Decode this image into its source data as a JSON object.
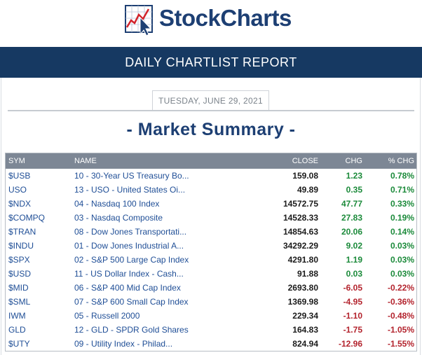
{
  "brand": {
    "name": "StockCharts"
  },
  "banner": {
    "title": "DAILY CHARTLIST REPORT"
  },
  "report": {
    "date": "TUESDAY, JUNE 29, 2021",
    "title": "- Market Summary -"
  },
  "table": {
    "headers": {
      "sym": "SYM",
      "name": "NAME",
      "close": "CLOSE",
      "chg": "CHG",
      "pct": "% CHG"
    },
    "rows": [
      {
        "sym": "$USB",
        "name": "10 - 30-Year US Treasury Bo...",
        "close": "159.08",
        "chg": "1.23",
        "pct": "0.78%",
        "dir": "pos"
      },
      {
        "sym": "USO",
        "name": "13 - USO - United States Oi...",
        "close": "49.89",
        "chg": "0.35",
        "pct": "0.71%",
        "dir": "pos"
      },
      {
        "sym": "$NDX",
        "name": "04 - Nasdaq 100 Index",
        "close": "14572.75",
        "chg": "47.77",
        "pct": "0.33%",
        "dir": "pos"
      },
      {
        "sym": "$COMPQ",
        "name": "03 - Nasdaq Composite",
        "close": "14528.33",
        "chg": "27.83",
        "pct": "0.19%",
        "dir": "pos"
      },
      {
        "sym": "$TRAN",
        "name": "08 - Dow Jones Transportati...",
        "close": "14854.63",
        "chg": "20.06",
        "pct": "0.14%",
        "dir": "pos"
      },
      {
        "sym": "$INDU",
        "name": "01 - Dow Jones Industrial A...",
        "close": "34292.29",
        "chg": "9.02",
        "pct": "0.03%",
        "dir": "pos"
      },
      {
        "sym": "$SPX",
        "name": "02 - S&P 500 Large Cap Index",
        "close": "4291.80",
        "chg": "1.19",
        "pct": "0.03%",
        "dir": "pos"
      },
      {
        "sym": "$USD",
        "name": "11 - US Dollar Index - Cash...",
        "close": "91.88",
        "chg": "0.03",
        "pct": "0.03%",
        "dir": "pos"
      },
      {
        "sym": "$MID",
        "name": "06 - S&P 400 Mid Cap Index",
        "close": "2693.80",
        "chg": "-6.05",
        "pct": "-0.22%",
        "dir": "neg"
      },
      {
        "sym": "$SML",
        "name": "07 - S&P 600 Small Cap Index",
        "close": "1369.98",
        "chg": "-4.95",
        "pct": "-0.36%",
        "dir": "neg"
      },
      {
        "sym": "IWM",
        "name": "05 - Russell 2000",
        "close": "229.34",
        "chg": "-1.10",
        "pct": "-0.48%",
        "dir": "neg"
      },
      {
        "sym": "GLD",
        "name": "12 - GLD - SPDR Gold Shares",
        "close": "164.83",
        "chg": "-1.75",
        "pct": "-1.05%",
        "dir": "neg"
      },
      {
        "sym": "$UTY",
        "name": "09 - Utility Index - Philad...",
        "close": "824.94",
        "chg": "-12.96",
        "pct": "-1.55%",
        "dir": "neg"
      }
    ]
  },
  "colors": {
    "navy": "#163962",
    "brand": "#1d3f73",
    "link": "#1f4e96",
    "positive": "#1b8a3a",
    "negative": "#b3232d",
    "header_bg": "#7d8795"
  },
  "icons": {
    "logo": "chart-cursor-logo-icon"
  }
}
